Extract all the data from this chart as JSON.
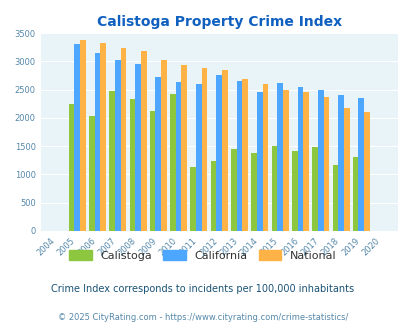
{
  "title": "Calistoga Property Crime Index",
  "title_color": "#1060c0",
  "years": [
    "2004",
    "2005",
    "2006",
    "2007",
    "2008",
    "2009",
    "2010",
    "2011",
    "2012",
    "2013",
    "2014",
    "2015",
    "2016",
    "2017",
    "2018",
    "2019",
    "2020"
  ],
  "calistoga": [
    0,
    2250,
    2030,
    2470,
    2340,
    2120,
    2420,
    1140,
    1230,
    1450,
    1380,
    1510,
    1420,
    1490,
    1160,
    1310,
    0
  ],
  "california": [
    0,
    3310,
    3150,
    3030,
    2950,
    2720,
    2630,
    2590,
    2760,
    2660,
    2460,
    2620,
    2550,
    2490,
    2400,
    2350,
    0
  ],
  "national": [
    0,
    3380,
    3320,
    3240,
    3190,
    3030,
    2940,
    2880,
    2850,
    2690,
    2590,
    2490,
    2450,
    2360,
    2180,
    2110,
    0
  ],
  "color_calistoga": "#8dc63f",
  "color_california": "#4da6ff",
  "color_national": "#ffb347",
  "bg_color": "#e8f4f8",
  "ylim": [
    0,
    3500
  ],
  "yticks": [
    0,
    500,
    1000,
    1500,
    2000,
    2500,
    3000,
    3500
  ],
  "footnote1": "Crime Index corresponds to incidents per 100,000 inhabitants",
  "footnote2": "© 2025 CityRating.com - https://www.cityrating.com/crime-statistics/",
  "legend_labels": [
    "Calistoga",
    "California",
    "National"
  ]
}
